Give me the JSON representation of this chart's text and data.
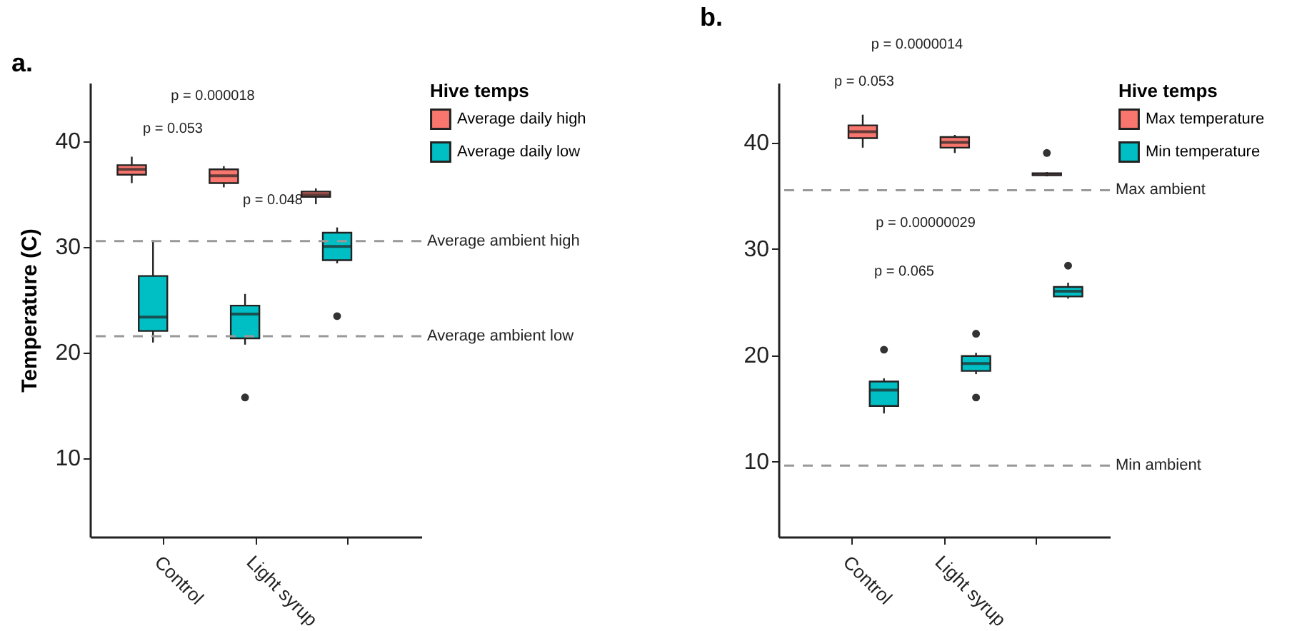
{
  "chart_data": [
    {
      "type": "box",
      "title": "a.",
      "ylabel": "Temperature (C)",
      "legend_title": "Hive temps",
      "legend": "right",
      "categories": [
        "Control",
        "Light syrup",
        null
      ],
      "ylim": [
        2.5,
        45.5
      ],
      "yticks": [
        10,
        20,
        30,
        40
      ],
      "series": [
        {
          "name": "Average daily high",
          "color": "#f8766d",
          "boxes": [
            {
              "low": 36.0,
              "q1": 36.8,
              "median": 37.3,
              "q3": 37.7,
              "high": 38.5
            },
            {
              "low": 35.6,
              "q1": 36.0,
              "median": 36.7,
              "q3": 37.3,
              "high": 37.6
            },
            {
              "low": 34.0,
              "q1": 34.7,
              "median": 34.9,
              "q3": 35.2,
              "high": 35.5
            }
          ]
        },
        {
          "name": "Average daily low",
          "color": "#00bfc4",
          "boxes": [
            {
              "low": 20.9,
              "q1": 22.0,
              "median": 23.3,
              "q3": 27.2,
              "high": 30.6
            },
            {
              "low": 20.7,
              "q1": 21.3,
              "median": 23.6,
              "q3": 24.4,
              "high": 25.5,
              "outliers": [
                15.7
              ]
            },
            {
              "low": 28.4,
              "q1": 28.7,
              "median": 30.0,
              "q3": 31.3,
              "high": 31.8,
              "outliers": [
                23.4
              ]
            }
          ]
        }
      ],
      "ref_lines": [
        {
          "axis": "y",
          "value": 30.5,
          "label": "Average ambient high"
        },
        {
          "axis": "y",
          "value": 21.5,
          "label": "Average ambient low"
        }
      ],
      "annotations": [
        "p = 0.000018",
        "p = 0.053",
        "p = 0.048"
      ]
    },
    {
      "type": "box",
      "title": "b.",
      "legend_title": "Hive temps",
      "legend": "right",
      "categories": [
        "Control",
        "Light syrup",
        null
      ],
      "ylim": [
        2.9,
        45.6
      ],
      "yticks": [
        10,
        20,
        30,
        40
      ],
      "series": [
        {
          "name": "Max temperature",
          "color": "#f8766d",
          "boxes": [
            {
              "low": 39.5,
              "q1": 40.4,
              "median": 41.0,
              "q3": 41.6,
              "high": 42.6
            },
            {
              "low": 39.0,
              "q1": 39.5,
              "median": 40.0,
              "q3": 40.5,
              "high": 40.7
            },
            {
              "low": 36.8,
              "q1": 36.9,
              "median": 37.0,
              "q3": 37.1,
              "high": 37.2,
              "outliers": [
                39.0
              ]
            }
          ]
        },
        {
          "name": "Min temperature",
          "color": "#00bfc4",
          "boxes": [
            {
              "low": 14.5,
              "q1": 15.2,
              "median": 16.7,
              "q3": 17.5,
              "high": 17.8,
              "outliers": [
                20.5
              ]
            },
            {
              "low": 18.2,
              "q1": 18.5,
              "median": 19.2,
              "q3": 19.9,
              "high": 20.2,
              "outliers": [
                22.0,
                16.0
              ]
            },
            {
              "low": 25.3,
              "q1": 25.5,
              "median": 26.0,
              "q3": 26.4,
              "high": 26.8,
              "outliers": [
                28.4
              ]
            }
          ]
        }
      ],
      "ref_lines": [
        {
          "axis": "y",
          "value": 35.5,
          "label": "Max ambient"
        },
        {
          "axis": "y",
          "value": 9.6,
          "label": "Min ambient"
        }
      ],
      "annotations": [
        "p = 0.0000014",
        "p = 0.053",
        "p = 0.00000029",
        "p = 0.065"
      ]
    }
  ]
}
